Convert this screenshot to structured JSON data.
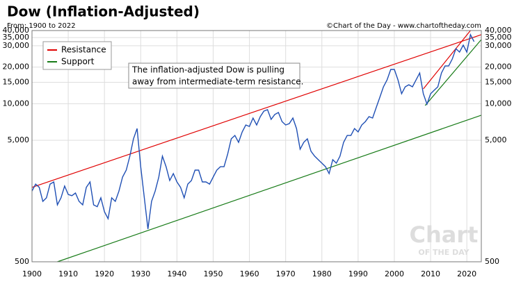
{
  "chart_data": {
    "type": "line",
    "title": "Dow (Inflation-Adjusted)",
    "subtitle": "From: 1900 to 2022",
    "source": "©Chart of the Day - www.chartoftheday.com",
    "annotation": [
      "The inflation-adjusted Dow is pulling",
      "away from intermediate-term resistance."
    ],
    "watermark": [
      "Chart",
      "OF THE DAY"
    ],
    "log_scale": true,
    "grid": true,
    "legend": "upper left",
    "xlim": [
      1900,
      2024
    ],
    "xticks": [
      1900,
      1910,
      1920,
      1930,
      1940,
      1950,
      1960,
      1970,
      1980,
      1990,
      2000,
      2010,
      2020
    ],
    "ylim": [
      500,
      40000
    ],
    "yticks": [
      500,
      {
        "value": 5000,
        "label": "5,000"
      },
      {
        "value": 10000,
        "label": "10,000"
      },
      {
        "value": 15000,
        "label": "15,000"
      },
      {
        "value": 20000,
        "label": "20,000"
      },
      {
        "value": 30000,
        "label": "30,000"
      },
      {
        "value": 35000,
        "label": "35,000"
      },
      {
        "value": 40000,
        "label": "40,000"
      }
    ],
    "series": [
      {
        "color": "#1f4fb4",
        "x": [
          1900,
          1901,
          1902,
          1903,
          1904,
          1905,
          1906,
          1907,
          1908,
          1909,
          1910,
          1911,
          1912,
          1913,
          1914,
          1915,
          1916,
          1917,
          1918,
          1919,
          1920,
          1921,
          1922,
          1923,
          1924,
          1925,
          1926,
          1927,
          1928,
          1929,
          1930,
          1931,
          1932,
          1933,
          1934,
          1935,
          1936,
          1937,
          1938,
          1939,
          1940,
          1941,
          1942,
          1943,
          1944,
          1945,
          1946,
          1947,
          1948,
          1949,
          1950,
          1951,
          1952,
          1953,
          1954,
          1955,
          1956,
          1957,
          1958,
          1959,
          1960,
          1961,
          1962,
          1963,
          1964,
          1965,
          1966,
          1967,
          1968,
          1969,
          1970,
          1971,
          1972,
          1973,
          1974,
          1975,
          1976,
          1977,
          1978,
          1979,
          1980,
          1981,
          1982,
          1983,
          1984,
          1985,
          1986,
          1987,
          1988,
          1989,
          1990,
          1991,
          1992,
          1993,
          1994,
          1995,
          1996,
          1997,
          1998,
          1999,
          2000,
          2001,
          2002,
          2003,
          2004,
          2005,
          2006,
          2007,
          2008,
          2009,
          2010,
          2011,
          2012,
          2013,
          2014,
          2015,
          2016,
          2017,
          2018,
          2019,
          2020,
          2021,
          2022
        ],
        "values": [
          1910,
          2180,
          2050,
          1570,
          1680,
          2180,
          2270,
          1470,
          1680,
          2100,
          1790,
          1750,
          1840,
          1570,
          1470,
          2050,
          2270,
          1470,
          1420,
          1680,
          1290,
          1130,
          1680,
          1570,
          1910,
          2490,
          2840,
          3700,
          5140,
          6250,
          3030,
          1680,
          930,
          1570,
          1910,
          2490,
          3700,
          3030,
          2330,
          2660,
          2270,
          2050,
          1680,
          2180,
          2330,
          2840,
          2840,
          2270,
          2270,
          2180,
          2490,
          2840,
          3030,
          3030,
          3850,
          5140,
          5480,
          4810,
          5860,
          6680,
          6500,
          7620,
          6680,
          7820,
          8690,
          8940,
          7430,
          8150,
          8470,
          7130,
          6680,
          6860,
          7620,
          6250,
          4220,
          4810,
          5140,
          4060,
          3700,
          3460,
          3240,
          3030,
          2660,
          3460,
          3240,
          3700,
          4810,
          5480,
          5480,
          6250,
          5860,
          6680,
          7130,
          7820,
          7620,
          9290,
          11300,
          13770,
          15700,
          19140,
          19140,
          15700,
          12080,
          13770,
          14320,
          13770,
          15700,
          17910,
          12080,
          9910,
          12080,
          12910,
          13770,
          17910,
          20470,
          20470,
          23340,
          28390,
          26610,
          30340,
          26610,
          36990,
          32440
        ]
      }
    ],
    "trend_lines": [
      {
        "name": "Resistance",
        "color": "#e00000",
        "segments": [
          {
            "x": [
              1900,
              2024
            ],
            "values": [
              2050,
              37000
            ]
          },
          {
            "x": [
              2008,
              2021
            ],
            "values": [
              13240,
              40000
            ]
          }
        ]
      },
      {
        "name": "Support",
        "color": "#167a16",
        "segments": [
          {
            "x": [
              1907,
              2024
            ],
            "values": [
              500,
              8040
            ]
          },
          {
            "x": [
              2008.5,
              2024
            ],
            "values": [
              9660,
              33720
            ]
          }
        ]
      }
    ]
  }
}
